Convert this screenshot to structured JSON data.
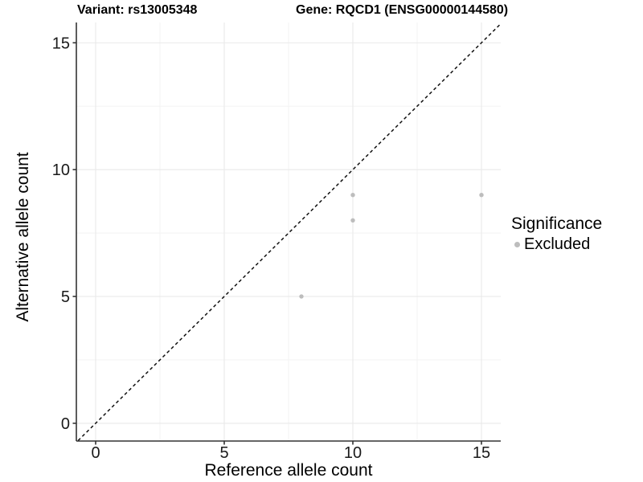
{
  "chart_data": {
    "type": "scatter",
    "titles": {
      "left": "Variant: rs13005348",
      "right": "Gene: RQCD1 (ENSG00000144580)"
    },
    "xlabel": "Reference allele count",
    "ylabel": "Alternative allele count",
    "xlim": [
      -0.75,
      15.75
    ],
    "ylim": [
      -0.7,
      15.8
    ],
    "x_ticks": [
      0,
      5,
      10,
      15
    ],
    "y_ticks": [
      0,
      5,
      10,
      15
    ],
    "grid": {
      "major_color": "#e9e9e9",
      "minor_color": "#f3f3f3",
      "show_minor": true
    },
    "axis_color": "#333333",
    "identity_line": {
      "equation": "y = x",
      "style": "dashed",
      "color": "#111111"
    },
    "series": [
      {
        "name": "Excluded",
        "color": "#bdbdbd",
        "point_radius": 2.7,
        "points": [
          [
            8,
            5
          ],
          [
            10,
            8
          ],
          [
            10,
            9
          ],
          [
            15,
            9
          ]
        ]
      }
    ],
    "legend": {
      "title": "Significance",
      "position": "right",
      "items": [
        {
          "label": "Excluded",
          "color": "#bdbdbd"
        }
      ]
    }
  }
}
